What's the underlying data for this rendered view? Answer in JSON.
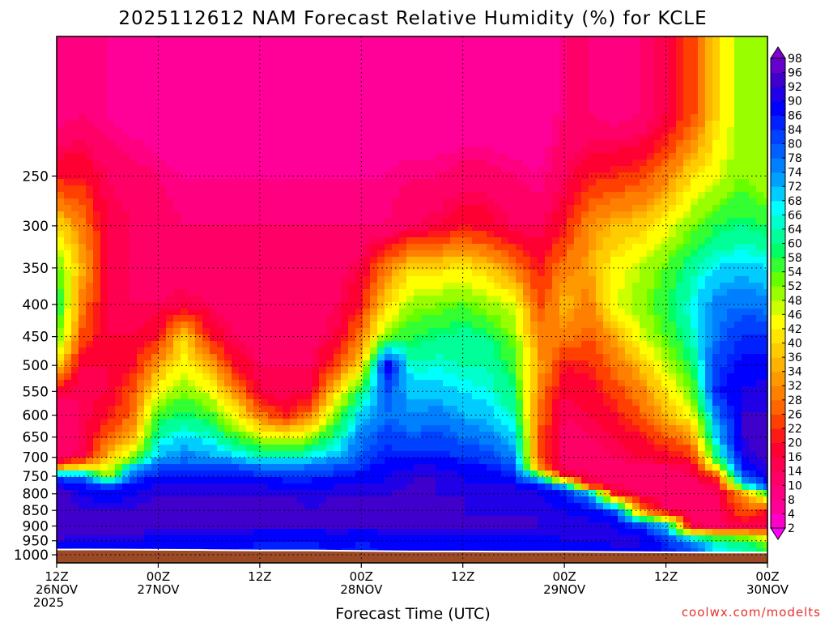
{
  "chart_data": {
    "type": "heatmap",
    "title": "2025112612 NAM Forecast Relative Humidity (%) for KCLE",
    "xlabel": "Forecast Time (UTC)",
    "ylabel": "",
    "x_ticks": [
      {
        "hour": 0,
        "line1": "12Z",
        "line2": "26NOV",
        "line3": "2025"
      },
      {
        "hour": 12,
        "line1": "00Z",
        "line2": "27NOV",
        "line3": ""
      },
      {
        "hour": 24,
        "line1": "12Z",
        "line2": "",
        "line3": ""
      },
      {
        "hour": 36,
        "line1": "00Z",
        "line2": "28NOV",
        "line3": ""
      },
      {
        "hour": 48,
        "line1": "12Z",
        "line2": "",
        "line3": ""
      },
      {
        "hour": 60,
        "line1": "00Z",
        "line2": "29NOV",
        "line3": ""
      },
      {
        "hour": 72,
        "line1": "12Z",
        "line2": "",
        "line3": ""
      },
      {
        "hour": 84,
        "line1": "00Z",
        "line2": "30NOV",
        "line3": ""
      }
    ],
    "xlim": [
      0,
      84
    ],
    "y_ticks": [
      250,
      300,
      350,
      400,
      450,
      500,
      550,
      600,
      650,
      700,
      750,
      800,
      850,
      900,
      950,
      1000
    ],
    "ylim": [
      1030,
      150
    ],
    "y_scale": "log-pressure (hPa)",
    "grid": true,
    "surface_fill_color": "#9b4a25",
    "surface_pressure": [
      {
        "hour": 0,
        "p": 978
      },
      {
        "hour": 6,
        "p": 978
      },
      {
        "hour": 12,
        "p": 979
      },
      {
        "hour": 18,
        "p": 980
      },
      {
        "hour": 24,
        "p": 981
      },
      {
        "hour": 30,
        "p": 981
      },
      {
        "hour": 36,
        "p": 983
      },
      {
        "hour": 42,
        "p": 985
      },
      {
        "hour": 48,
        "p": 985
      },
      {
        "hour": 54,
        "p": 986
      },
      {
        "hour": 60,
        "p": 986
      },
      {
        "hour": 66,
        "p": 987
      },
      {
        "hour": 72,
        "p": 988
      },
      {
        "hour": 78,
        "p": 989
      },
      {
        "hour": 84,
        "p": 989
      }
    ],
    "colorbar": {
      "levels": [
        2,
        4,
        8,
        10,
        14,
        16,
        20,
        22,
        26,
        28,
        32,
        34,
        36,
        40,
        42,
        46,
        48,
        52,
        54,
        58,
        60,
        64,
        66,
        68,
        72,
        74,
        78,
        80,
        84,
        86,
        90,
        92,
        96,
        98
      ],
      "colors": [
        "#ff00ff",
        "#ff00cc",
        "#ff0099",
        "#ff0080",
        "#ff0066",
        "#ff0050",
        "#ff0033",
        "#ff1a1a",
        "#ff4000",
        "#ff6600",
        "#ff8000",
        "#ff9900",
        "#ffb300",
        "#ffcc00",
        "#ffe600",
        "#ffff00",
        "#ccff00",
        "#99ff00",
        "#66ff00",
        "#33ff33",
        "#00ff66",
        "#00ff99",
        "#00ffcc",
        "#00ffff",
        "#00ccff",
        "#00a0ff",
        "#0080ff",
        "#0060ff",
        "#0040ff",
        "#0020ff",
        "#0000ff",
        "#2000e6",
        "#4000cc",
        "#6600cc",
        "#8000cc"
      ]
    },
    "field_hours": [
      0,
      3,
      6,
      9,
      12,
      15,
      18,
      21,
      24,
      27,
      30,
      33,
      36,
      39,
      42,
      45,
      48,
      51,
      54,
      57,
      60,
      63,
      66,
      69,
      72,
      75,
      78,
      81,
      84
    ],
    "field_levels": [
      200,
      250,
      300,
      350,
      400,
      450,
      500,
      550,
      600,
      650,
      700,
      725,
      750,
      775,
      800,
      850,
      900,
      950,
      1000
    ],
    "field_rh": [
      [
        8,
        20,
        40,
        55,
        60,
        55,
        40,
        16,
        10,
        10,
        12,
        30,
        80,
        92,
        94,
        95,
        96,
        92,
        85
      ],
      [
        10,
        20,
        30,
        35,
        30,
        25,
        16,
        14,
        14,
        14,
        16,
        40,
        78,
        86,
        90,
        92,
        94,
        90,
        84
      ],
      [
        8,
        14,
        16,
        16,
        16,
        16,
        16,
        16,
        20,
        26,
        36,
        42,
        46,
        82,
        88,
        92,
        94,
        90,
        86
      ],
      [
        6,
        12,
        14,
        14,
        14,
        16,
        20,
        26,
        28,
        36,
        50,
        68,
        80,
        88,
        90,
        92,
        94,
        90,
        86
      ],
      [
        4,
        10,
        12,
        12,
        14,
        20,
        34,
        44,
        56,
        64,
        72,
        80,
        86,
        90,
        92,
        94,
        94,
        88,
        84
      ],
      [
        4,
        8,
        10,
        12,
        16,
        40,
        44,
        52,
        60,
        68,
        76,
        82,
        86,
        90,
        92,
        94,
        94,
        88,
        84
      ],
      [
        4,
        8,
        10,
        10,
        14,
        20,
        36,
        46,
        56,
        66,
        74,
        80,
        86,
        90,
        92,
        94,
        94,
        88,
        86
      ],
      [
        4,
        8,
        10,
        10,
        12,
        14,
        20,
        32,
        44,
        56,
        70,
        80,
        86,
        90,
        92,
        94,
        94,
        88,
        86
      ],
      [
        4,
        8,
        10,
        10,
        10,
        12,
        14,
        16,
        30,
        48,
        66,
        78,
        86,
        90,
        92,
        94,
        92,
        86,
        84
      ],
      [
        4,
        8,
        10,
        10,
        12,
        12,
        14,
        14,
        20,
        44,
        64,
        76,
        84,
        88,
        92,
        94,
        92,
        86,
        84
      ],
      [
        4,
        8,
        10,
        10,
        12,
        12,
        14,
        16,
        30,
        50,
        68,
        78,
        84,
        88,
        90,
        92,
        92,
        86,
        84
      ],
      [
        4,
        8,
        10,
        12,
        14,
        16,
        24,
        40,
        52,
        62,
        72,
        80,
        86,
        90,
        92,
        94,
        92,
        88,
        86
      ],
      [
        4,
        8,
        10,
        16,
        20,
        30,
        40,
        60,
        70,
        76,
        80,
        84,
        88,
        90,
        92,
        94,
        92,
        86,
        84
      ],
      [
        4,
        8,
        10,
        30,
        40,
        52,
        90,
        80,
        78,
        82,
        86,
        88,
        90,
        90,
        92,
        94,
        92,
        88,
        86
      ],
      [
        4,
        10,
        14,
        40,
        50,
        58,
        64,
        70,
        74,
        80,
        86,
        90,
        92,
        92,
        94,
        94,
        92,
        88,
        86
      ],
      [
        4,
        10,
        16,
        40,
        52,
        60,
        66,
        70,
        76,
        82,
        86,
        90,
        92,
        92,
        92,
        94,
        92,
        88,
        86
      ],
      [
        4,
        12,
        20,
        42,
        54,
        62,
        64,
        68,
        72,
        78,
        84,
        88,
        90,
        90,
        92,
        92,
        92,
        88,
        86
      ],
      [
        4,
        12,
        18,
        38,
        50,
        60,
        64,
        66,
        70,
        76,
        82,
        86,
        88,
        90,
        90,
        92,
        92,
        88,
        86
      ],
      [
        4,
        10,
        14,
        30,
        46,
        52,
        56,
        60,
        64,
        70,
        76,
        82,
        86,
        90,
        92,
        92,
        92,
        88,
        86
      ],
      [
        4,
        8,
        14,
        20,
        24,
        30,
        34,
        30,
        28,
        26,
        26,
        30,
        60,
        84,
        90,
        92,
        92,
        88,
        86
      ],
      [
        10,
        14,
        20,
        30,
        36,
        30,
        20,
        16,
        14,
        12,
        12,
        14,
        18,
        70,
        86,
        90,
        92,
        90,
        86
      ],
      [
        10,
        20,
        32,
        34,
        30,
        26,
        22,
        18,
        16,
        14,
        12,
        12,
        14,
        16,
        74,
        88,
        92,
        90,
        86
      ],
      [
        8,
        22,
        36,
        44,
        46,
        34,
        28,
        24,
        20,
        16,
        14,
        12,
        12,
        14,
        20,
        82,
        90,
        92,
        86
      ],
      [
        10,
        24,
        38,
        48,
        50,
        46,
        36,
        30,
        26,
        20,
        16,
        14,
        12,
        12,
        14,
        30,
        84,
        92,
        86
      ],
      [
        16,
        30,
        44,
        54,
        58,
        54,
        48,
        40,
        36,
        26,
        18,
        14,
        12,
        12,
        12,
        14,
        70,
        84,
        86
      ],
      [
        24,
        40,
        52,
        62,
        66,
        64,
        58,
        52,
        44,
        32,
        22,
        16,
        14,
        12,
        12,
        12,
        16,
        76,
        82
      ],
      [
        40,
        46,
        58,
        68,
        76,
        78,
        82,
        86,
        76,
        70,
        60,
        46,
        24,
        16,
        14,
        12,
        12,
        64,
        68
      ],
      [
        50,
        52,
        60,
        70,
        78,
        84,
        88,
        90,
        92,
        92,
        90,
        86,
        80,
        64,
        32,
        26,
        16,
        60,
        66
      ],
      [
        48,
        48,
        58,
        68,
        76,
        84,
        88,
        92,
        92,
        94,
        94,
        92,
        90,
        84,
        56,
        20,
        14,
        50,
        60
      ]
    ],
    "colorbar_labels": [
      2,
      4,
      8,
      10,
      14,
      16,
      20,
      22,
      26,
      28,
      32,
      34,
      36,
      40,
      42,
      46,
      48,
      52,
      54,
      58,
      60,
      64,
      66,
      68,
      72,
      74,
      78,
      80,
      84,
      86,
      90,
      92,
      96,
      98
    ]
  },
  "credit": "coolwx.com/modelts"
}
